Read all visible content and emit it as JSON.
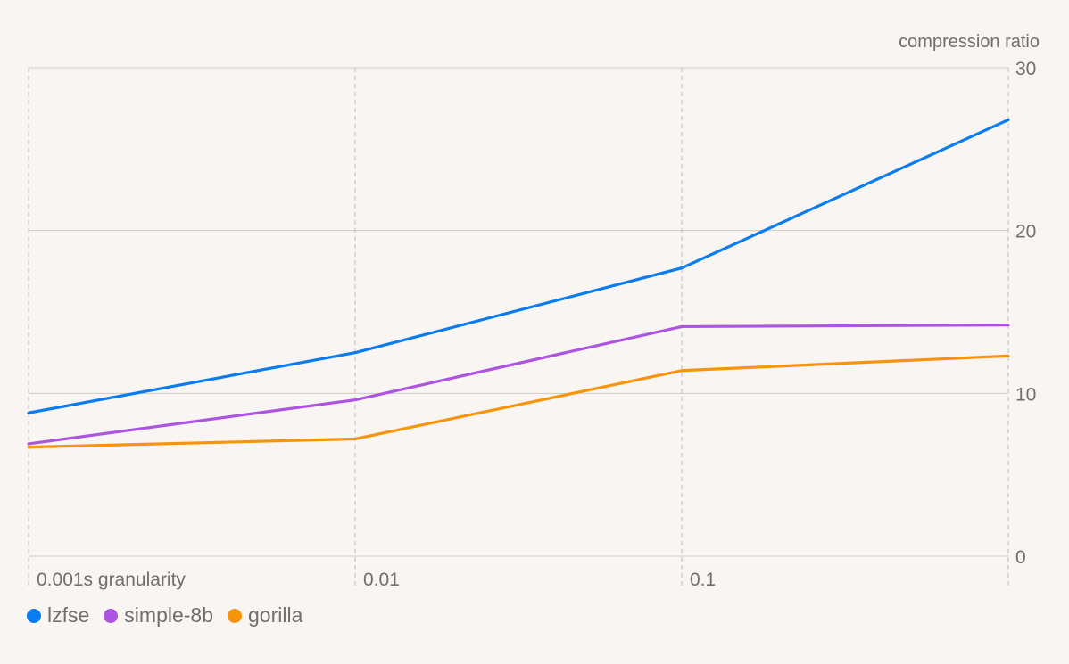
{
  "chart_data": {
    "type": "line",
    "x": [
      "0.001s granularity",
      "0.01",
      "0.1",
      ""
    ],
    "ylabel": "compression ratio",
    "ylim": [
      0,
      30
    ],
    "yticks": [
      0,
      10,
      20,
      30
    ],
    "grid": true,
    "legend_position": "bottom-left",
    "series": [
      {
        "name": "lzfse",
        "color": "#0a7cf0",
        "values": [
          8.8,
          12.5,
          17.7,
          26.8
        ]
      },
      {
        "name": "simple-8b",
        "color": "#ad55e0",
        "values": [
          6.9,
          9.6,
          14.1,
          14.2
        ]
      },
      {
        "name": "gorilla",
        "color": "#f7940a",
        "values": [
          6.7,
          7.2,
          11.4,
          12.3
        ]
      }
    ]
  }
}
